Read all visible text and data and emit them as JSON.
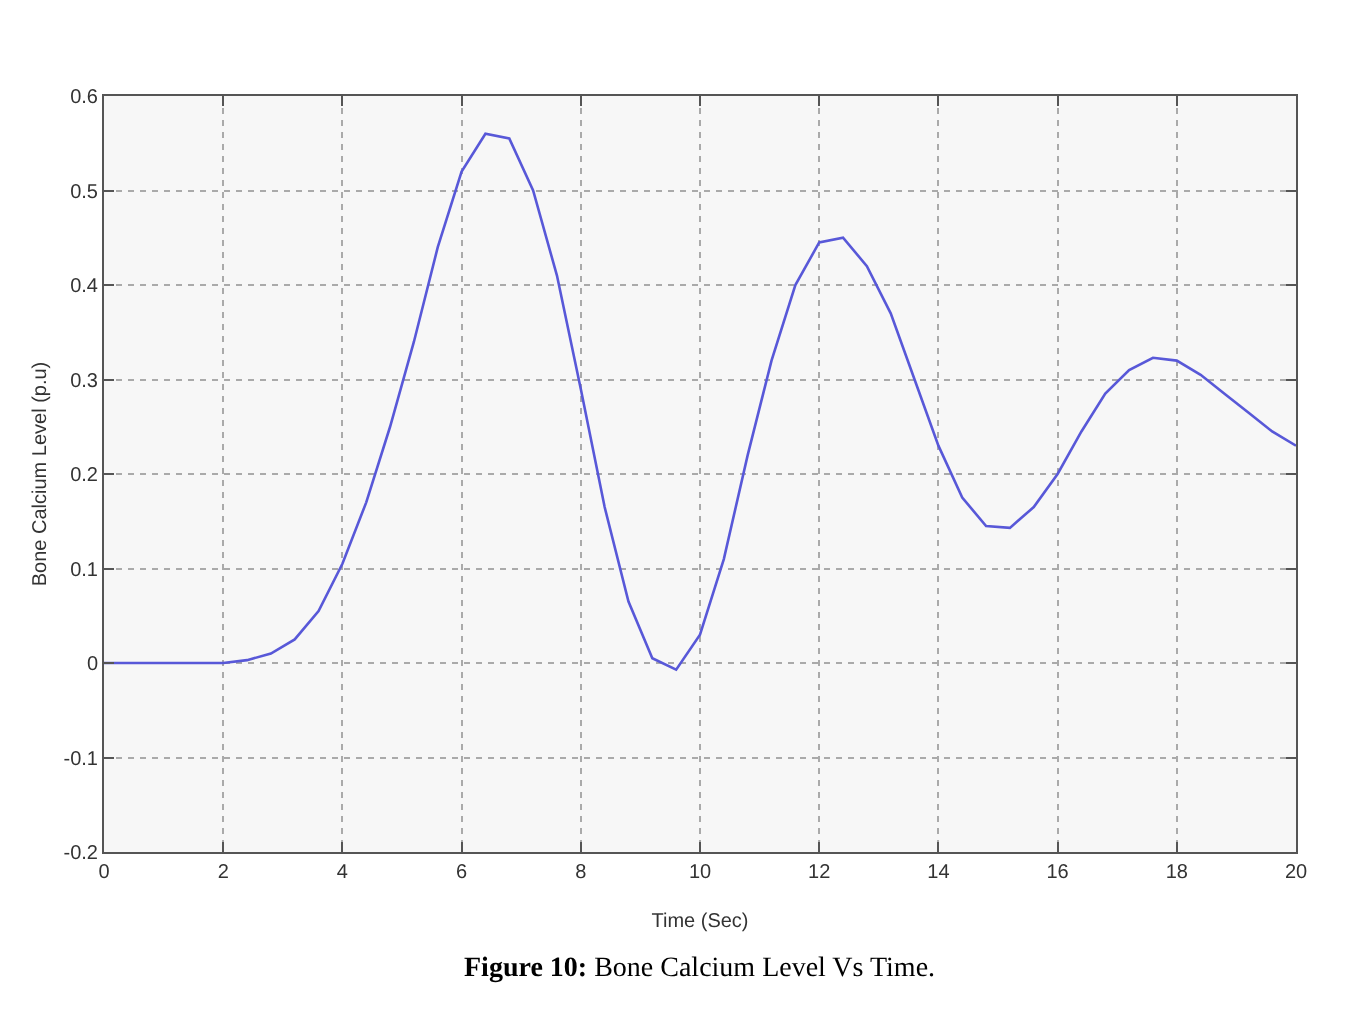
{
  "chart_data": {
    "type": "line",
    "xlabel": "Time (Sec)",
    "ylabel": "Bone Calcium Level (p.u)",
    "annotations": [
      "Figure 10: Bone Calcium Level Vs Time."
    ],
    "x": [
      0,
      2,
      2.4,
      2.8,
      3.2,
      3.6,
      4,
      4.4,
      4.8,
      5.2,
      5.6,
      6,
      6.4,
      6.8,
      7.2,
      7.6,
      8,
      8.4,
      8.8,
      9.2,
      9.6,
      10,
      10.4,
      10.8,
      11.2,
      11.6,
      12,
      12.4,
      12.8,
      13.2,
      13.6,
      14,
      14.4,
      14.8,
      15.2,
      15.6,
      16,
      16.4,
      16.8,
      17.2,
      17.6,
      18,
      18.4,
      18.8,
      19.2,
      19.6,
      20
    ],
    "series": [
      {
        "color": "#5858d8",
        "values": [
          0,
          0,
          0.003,
          0.01,
          0.025,
          0.055,
          0.105,
          0.17,
          0.25,
          0.34,
          0.44,
          0.52,
          0.56,
          0.555,
          0.5,
          0.41,
          0.29,
          0.165,
          0.065,
          0.005,
          -0.007,
          0.03,
          0.11,
          0.22,
          0.32,
          0.4,
          0.445,
          0.45,
          0.42,
          0.37,
          0.3,
          0.23,
          0.175,
          0.145,
          0.143,
          0.165,
          0.2,
          0.245,
          0.285,
          0.31,
          0.323,
          0.32,
          0.305,
          0.285,
          0.265,
          0.245,
          0.23
        ]
      }
    ],
    "xlim": [
      0,
      20
    ],
    "xticks": [
      0,
      2,
      4,
      6,
      8,
      10,
      12,
      14,
      16,
      18,
      20
    ],
    "ylim": [
      -0.2,
      0.6
    ],
    "yticks": [
      -0.2,
      -0.1,
      0,
      0.1,
      0.2,
      0.3,
      0.4,
      0.5,
      0.6
    ],
    "grid": true,
    "marker": "none",
    "line_style": "solid"
  }
}
